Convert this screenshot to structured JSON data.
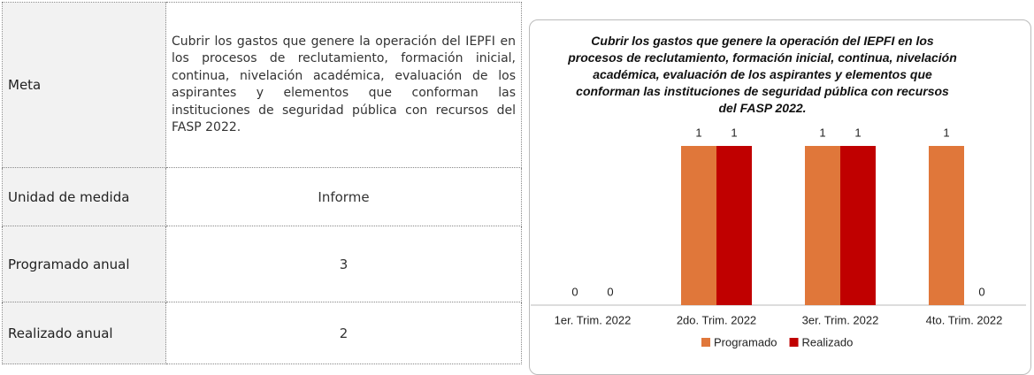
{
  "table": {
    "rows": [
      [
        "Meta",
        "Cubrir los gastos que genere la operación del IEPFI en los procesos de reclutamiento, formación inicial, continua, nivelación académica, evaluación de los aspirantes y elementos que conforman las instituciones de seguridad pública con recursos del FASP 2022."
      ],
      [
        "Unidad de medida",
        "Informe"
      ],
      [
        "Programado anual",
        "3"
      ],
      [
        "Realizado anual",
        "2"
      ]
    ]
  },
  "chart_data": {
    "type": "bar",
    "title": "Cubrir los gastos que genere la operación del IEPFI en los procesos de reclutamiento, formación inicial, continua, nivelación académica, evaluación de los aspirantes y elementos que conforman las instituciones de seguridad pública con recursos del FASP 2022.",
    "categories": [
      "1er. Trim. 2022",
      "2do. Trim. 2022",
      "3er. Trim. 2022",
      "4to. Trim. 2022"
    ],
    "series": [
      {
        "name": "Programado",
        "color": "#e0773a",
        "values": [
          0,
          1,
          1,
          1
        ]
      },
      {
        "name": "Realizado",
        "color": "#c00000",
        "values": [
          0,
          1,
          1,
          0
        ]
      }
    ]
  }
}
